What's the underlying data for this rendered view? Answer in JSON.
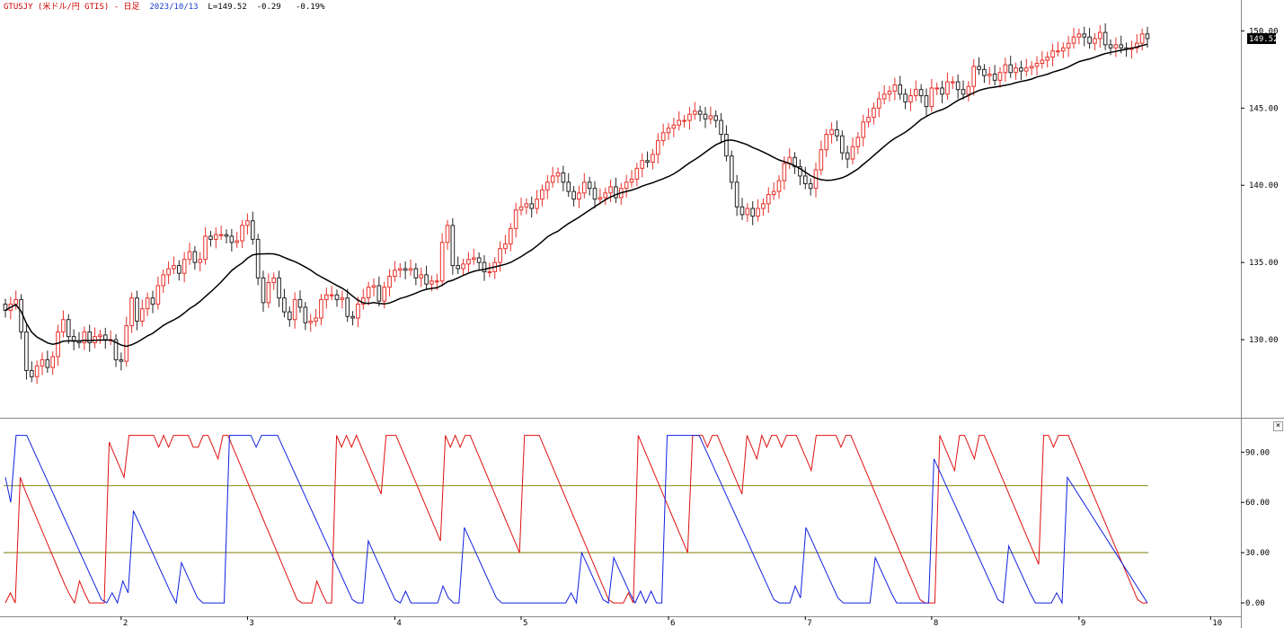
{
  "header": {
    "symbol": "GTUSJY (米ドル/円 GTIS) - 日足",
    "date": "2023/10/13",
    "last": "L=149.52",
    "change": "-0.29",
    "change_pct": "-0.19%"
  },
  "last_price_label": "149.52",
  "colors": {
    "up": "#e8302a",
    "down": "#222222",
    "ma": "#000000",
    "osc_red": "#e01010",
    "osc_blue": "#1020e0",
    "levels": "#9a9a3a",
    "price_tag_bg": "#000000"
  },
  "chart_data": [
    {
      "type": "candlestick",
      "title": "",
      "ylim": [
        125,
        152
      ],
      "y_ticks": [
        "150.00",
        "145.00",
        "140.00",
        "135.00",
        "130.00"
      ],
      "y_tick_values": [
        150,
        145,
        140,
        135,
        130
      ],
      "x_ticks": [
        "2",
        "3",
        "4",
        "5",
        "6",
        "7",
        "8",
        "9",
        "10"
      ],
      "x_tick_bar_index": [
        22,
        46,
        74,
        98,
        126,
        152,
        176,
        204,
        229
      ],
      "series": [
        {
          "name": "",
          "kind": "candles",
          "close": [
            131.9,
            132.3,
            132.6,
            130.5,
            128.0,
            127.6,
            128.3,
            128.7,
            128.2,
            128.9,
            130.5,
            131.3,
            130.2,
            129.9,
            129.8,
            130.5,
            129.8,
            130.2,
            130.3,
            130.0,
            130.0,
            128.7,
            128.6,
            130.9,
            132.7,
            131.2,
            132.0,
            132.7,
            132.3,
            133.5,
            134.2,
            134.6,
            134.8,
            134.3,
            135.2,
            135.7,
            135.0,
            135.2,
            136.7,
            136.5,
            136.8,
            136.8,
            136.7,
            136.3,
            136.4,
            137.4,
            137.7,
            136.5,
            134.0,
            132.4,
            133.7,
            134.0,
            132.7,
            131.8,
            131.3,
            132.6,
            132.1,
            131.1,
            131.2,
            131.4,
            132.6,
            132.9,
            132.9,
            132.6,
            132.7,
            131.5,
            131.4,
            132.3,
            132.7,
            133.4,
            133.5,
            132.5,
            133.4,
            134.1,
            134.5,
            134.6,
            134.5,
            134.6,
            134.0,
            134.2,
            133.6,
            133.8,
            133.8,
            136.3,
            137.4,
            134.8,
            134.6,
            134.9,
            135.2,
            135.3,
            135.0,
            134.4,
            134.4,
            135.0,
            135.9,
            136.2,
            137.2,
            138.4,
            138.6,
            138.8,
            138.5,
            139.1,
            139.7,
            140.2,
            140.6,
            140.8,
            140.2,
            139.6,
            139.1,
            139.5,
            140.2,
            139.8,
            139.1,
            139.2,
            139.5,
            139.9,
            139.2,
            139.8,
            140.2,
            140.4,
            141.1,
            141.6,
            141.5,
            142.0,
            142.9,
            143.4,
            143.7,
            143.9,
            144.2,
            144.2,
            144.6,
            144.8,
            144.6,
            144.3,
            144.5,
            144.2,
            143.3,
            141.9,
            140.2,
            138.6,
            138.1,
            138.5,
            138.0,
            138.5,
            138.8,
            139.4,
            139.6,
            140.3,
            141.4,
            141.8,
            141.2,
            140.6,
            140.1,
            139.8,
            141.0,
            142.3,
            143.3,
            143.6,
            143.2,
            142.1,
            141.7,
            142.5,
            143.1,
            144.1,
            144.4,
            145.0,
            145.6,
            145.9,
            146.1,
            146.5,
            145.9,
            145.4,
            145.8,
            146.2,
            145.8,
            145.1,
            146.3,
            146.3,
            145.9,
            146.7,
            146.7,
            146.2,
            145.9,
            146.4,
            147.7,
            147.5,
            147.1,
            147.2,
            146.8,
            147.3,
            147.8,
            147.3,
            147.6,
            147.4,
            147.6,
            147.7,
            147.9,
            148.1,
            148.3,
            148.7,
            148.7,
            148.9,
            149.2,
            149.6,
            149.8,
            149.6,
            149.2,
            149.5,
            149.9,
            149.1,
            148.9,
            149.1,
            148.9,
            148.8,
            148.9,
            149.2,
            149.8,
            149.5
          ],
          "open": [
            132.3,
            131.9,
            132.3,
            132.6,
            130.5,
            128.0,
            127.6,
            128.3,
            128.7,
            128.2,
            128.9,
            130.5,
            131.3,
            130.2,
            129.9,
            129.8,
            130.5,
            129.8,
            130.2,
            130.3,
            130.0,
            130.0,
            128.7,
            128.6,
            130.9,
            132.7,
            131.2,
            132.0,
            132.7,
            132.3,
            133.5,
            134.2,
            134.6,
            134.8,
            134.3,
            135.2,
            135.7,
            135.0,
            135.2,
            136.7,
            136.5,
            136.8,
            136.8,
            136.7,
            136.3,
            136.4,
            137.4,
            137.7,
            136.5,
            134.0,
            132.4,
            133.7,
            134.0,
            132.7,
            131.8,
            131.3,
            132.6,
            132.1,
            131.1,
            131.2,
            131.4,
            132.6,
            132.9,
            132.9,
            132.6,
            132.7,
            131.5,
            131.4,
            132.3,
            132.7,
            133.4,
            133.5,
            132.5,
            133.4,
            134.1,
            134.5,
            134.6,
            134.5,
            134.6,
            134.0,
            134.2,
            133.6,
            133.8,
            133.8,
            136.3,
            137.4,
            134.8,
            134.6,
            134.9,
            135.2,
            135.3,
            135.0,
            134.4,
            134.4,
            135.0,
            135.9,
            136.2,
            137.2,
            138.4,
            138.6,
            138.8,
            138.5,
            139.1,
            139.7,
            140.2,
            140.6,
            140.8,
            140.2,
            139.6,
            139.1,
            139.5,
            140.2,
            139.8,
            139.1,
            139.2,
            139.5,
            139.9,
            139.2,
            139.8,
            140.2,
            140.4,
            141.1,
            141.6,
            141.5,
            142.0,
            142.9,
            143.4,
            143.7,
            143.9,
            144.2,
            144.2,
            144.6,
            144.8,
            144.6,
            144.3,
            144.5,
            144.2,
            143.3,
            141.9,
            140.2,
            138.6,
            138.1,
            138.5,
            138.0,
            138.5,
            138.8,
            139.4,
            139.6,
            140.3,
            141.4,
            141.8,
            141.2,
            140.6,
            140.1,
            139.8,
            141.0,
            142.3,
            143.3,
            143.6,
            143.2,
            142.1,
            141.7,
            142.5,
            143.1,
            144.1,
            144.4,
            145.0,
            145.6,
            145.9,
            146.1,
            146.5,
            145.9,
            145.4,
            145.8,
            146.2,
            145.8,
            145.1,
            146.3,
            146.3,
            145.9,
            146.7,
            146.7,
            146.2,
            145.9,
            146.4,
            147.7,
            147.5,
            147.1,
            147.2,
            146.8,
            147.3,
            147.8,
            147.3,
            147.6,
            147.4,
            147.6,
            147.7,
            147.9,
            148.1,
            148.3,
            148.7,
            148.7,
            148.9,
            149.2,
            149.6,
            149.8,
            149.6,
            149.2,
            149.5,
            149.9,
            149.1,
            148.9,
            149.1,
            148.9,
            148.8,
            148.9,
            149.2,
            149.8
          ]
        }
      ]
    },
    {
      "type": "line",
      "title": "",
      "ylim": [
        -8,
        110
      ],
      "y_ticks": [
        "90.00",
        "60.00",
        "30.00",
        "0.00"
      ],
      "y_tick_values": [
        90,
        60,
        30,
        0
      ],
      "levels": [
        70,
        30
      ],
      "series": [
        {
          "name": "",
          "color_key": "osc_red",
          "values": [
            0,
            6,
            0,
            75,
            67,
            60,
            53,
            46,
            39,
            32,
            25,
            18,
            11,
            5,
            0,
            13,
            6,
            0,
            0,
            0,
            0,
            96,
            89,
            82,
            75,
            100,
            100,
            100,
            100,
            100,
            100,
            93,
            100,
            93,
            100,
            100,
            100,
            100,
            93,
            93,
            100,
            100,
            93,
            86,
            100,
            100,
            93,
            86,
            79,
            72,
            65,
            58,
            51,
            44,
            37,
            30,
            23,
            16,
            9,
            2,
            0,
            0,
            0,
            13,
            6,
            0,
            0,
            100,
            93,
            100,
            93,
            100,
            93,
            86,
            79,
            72,
            65,
            100,
            100,
            100,
            93,
            86,
            79,
            72,
            65,
            58,
            51,
            44,
            37,
            100,
            93,
            100,
            93,
            100,
            100,
            93,
            86,
            79,
            72,
            65,
            58,
            51,
            44,
            37,
            30,
            100,
            100,
            100,
            100,
            93,
            86,
            79,
            72,
            65,
            58,
            51,
            44,
            37,
            30,
            23,
            16,
            9,
            2,
            0,
            0,
            0,
            6,
            0,
            100,
            93,
            86,
            79,
            72,
            65,
            58,
            51,
            44,
            37,
            30,
            100,
            100,
            100,
            93,
            100,
            100,
            93,
            86,
            79,
            72,
            65,
            100,
            93,
            86,
            100,
            93,
            100,
            100,
            93,
            100,
            100,
            100,
            93,
            86,
            79,
            100,
            100,
            100,
            100,
            100,
            93,
            100,
            100,
            93,
            86,
            79,
            72,
            65,
            58,
            51,
            44,
            37,
            30,
            23,
            16,
            9,
            2,
            0,
            0,
            0,
            100,
            93,
            86,
            79,
            100,
            100,
            93,
            86,
            100,
            100,
            93,
            86,
            79,
            72,
            65,
            58,
            51,
            44,
            37,
            30,
            23,
            100,
            100,
            93,
            100,
            100,
            100,
            93,
            86,
            79,
            72,
            65,
            58,
            51,
            44,
            37,
            30,
            23,
            16,
            9,
            2,
            0,
            0
          ]
        },
        {
          "name": "",
          "color_key": "osc_blue",
          "values": [
            75,
            60,
            100,
            100,
            100,
            93,
            86,
            79,
            72,
            65,
            58,
            51,
            44,
            37,
            30,
            23,
            16,
            9,
            2,
            0,
            6,
            0,
            13,
            6,
            55,
            48,
            41,
            34,
            27,
            20,
            13,
            6,
            0,
            24,
            17,
            10,
            3,
            0,
            0,
            0,
            0,
            0,
            100,
            100,
            100,
            100,
            100,
            93,
            100,
            100,
            100,
            100,
            93,
            86,
            79,
            72,
            65,
            58,
            51,
            44,
            37,
            30,
            23,
            16,
            9,
            2,
            0,
            0,
            37,
            30,
            23,
            16,
            9,
            2,
            0,
            7,
            0,
            0,
            0,
            0,
            0,
            0,
            10,
            3,
            0,
            0,
            45,
            38,
            31,
            24,
            17,
            10,
            3,
            0,
            0,
            0,
            0,
            0,
            0,
            0,
            0,
            0,
            0,
            0,
            0,
            0,
            6,
            0,
            30,
            23,
            16,
            9,
            2,
            0,
            27,
            20,
            13,
            6,
            0,
            7,
            0,
            7,
            0,
            0,
            100,
            100,
            100,
            100,
            100,
            100,
            100,
            93,
            86,
            79,
            72,
            65,
            58,
            51,
            44,
            37,
            30,
            23,
            16,
            9,
            2,
            0,
            0,
            0,
            10,
            3,
            45,
            38,
            31,
            24,
            17,
            10,
            3,
            0,
            0,
            0,
            0,
            0,
            0,
            27,
            20,
            13,
            6,
            0,
            0,
            0,
            0,
            0,
            0,
            0,
            86,
            79,
            72,
            65,
            58,
            51,
            44,
            37,
            30,
            23,
            16,
            9,
            2,
            0,
            34,
            27,
            20,
            13,
            6,
            0,
            0,
            0,
            0,
            6,
            0,
            75,
            70,
            65,
            60,
            55,
            50,
            45,
            40,
            35,
            30,
            25,
            20,
            15,
            10,
            5,
            0
          ]
        }
      ]
    }
  ]
}
